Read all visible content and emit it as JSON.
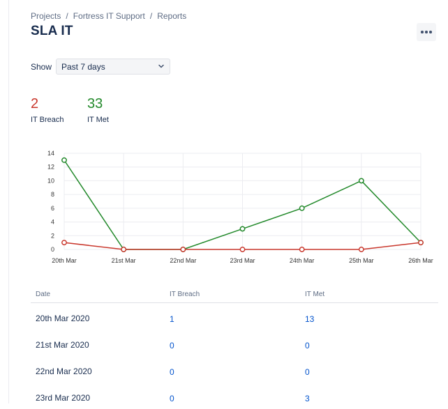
{
  "breadcrumb": [
    "Projects",
    "Fortress IT Support",
    "Reports"
  ],
  "title": "SLA IT",
  "more_icon": "more-horizontal-icon",
  "filter": {
    "label": "Show",
    "value": "Past 7 days",
    "icon": "chevron-down-icon"
  },
  "stats": [
    {
      "value": "2",
      "label": "IT Breach",
      "color": "#c9372c"
    },
    {
      "value": "33",
      "label": "IT Met",
      "color": "#22892a"
    }
  ],
  "chart_data": {
    "type": "line",
    "categories": [
      "20th Mar",
      "21st Mar",
      "22nd Mar",
      "23rd Mar",
      "24th Mar",
      "25th Mar",
      "26th Mar"
    ],
    "yticks": [
      0,
      2,
      4,
      6,
      8,
      10,
      12,
      14
    ],
    "ylim": [
      0,
      14
    ],
    "grid": true,
    "series": [
      {
        "key": "met",
        "values": [
          13,
          0,
          0,
          3,
          6,
          10,
          1
        ],
        "color": "#22892a"
      },
      {
        "key": "breach",
        "values": [
          1,
          0,
          0,
          0,
          0,
          0,
          1
        ],
        "color": "#c9372c"
      }
    ]
  },
  "table": {
    "headers": [
      "Date",
      "IT Breach",
      "IT Met"
    ],
    "rows": [
      [
        "20th Mar 2020",
        "1",
        "13"
      ],
      [
        "21st Mar 2020",
        "0",
        "0"
      ],
      [
        "22nd Mar 2020",
        "0",
        "0"
      ],
      [
        "23rd Mar 2020",
        "0",
        "3"
      ]
    ]
  }
}
